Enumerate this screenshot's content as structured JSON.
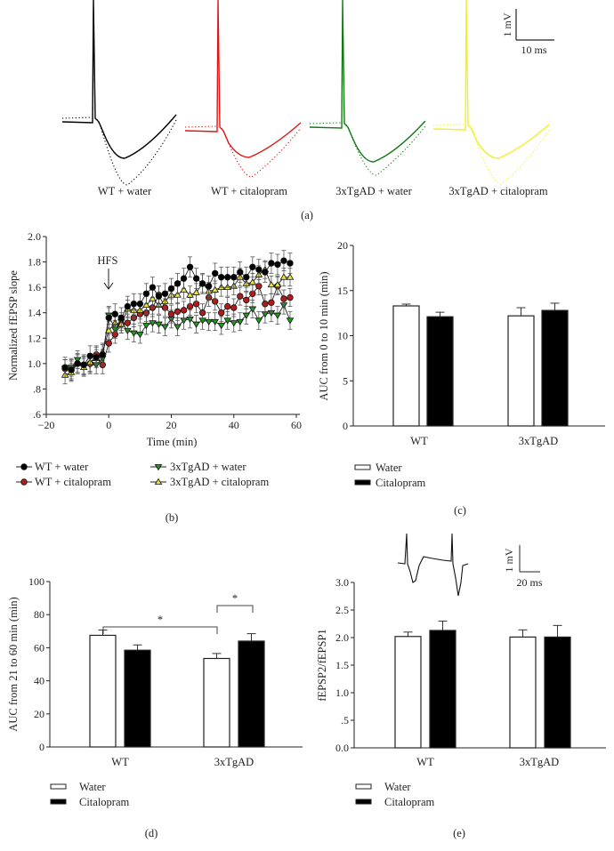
{
  "panel_a": {
    "traces": [
      {
        "label": "WT + water",
        "color": "#000000"
      },
      {
        "label": "WT + citalopram",
        "color": "#e01515"
      },
      {
        "label": "3xTgAD + water",
        "color": "#127a12"
      },
      {
        "label": "3xTgAD + citalopram",
        "color": "#f2f020"
      }
    ],
    "scale_v": "1 mV",
    "scale_h": "10 ms",
    "caption": "(a)"
  },
  "chart_data": [
    {
      "id": "b",
      "type": "line",
      "caption": "(b)",
      "xlabel": "Time (min)",
      "ylabel": "Normalized fEPSP slope",
      "xlim": [
        -20,
        60
      ],
      "ylim": [
        0.6,
        2.0
      ],
      "xticks": [
        "-20",
        "0",
        "20",
        "40",
        "60"
      ],
      "xtick_values": [
        -20,
        0,
        20,
        40,
        60
      ],
      "yticks": [
        ".6",
        ".8",
        "1.0",
        "1.2",
        "1.4",
        "1.6",
        "1.8",
        "2.0"
      ],
      "ytick_values": [
        0.6,
        0.8,
        1.0,
        1.2,
        1.4,
        1.6,
        1.8,
        2.0
      ],
      "annotation": {
        "text": "HFS",
        "x": 0
      },
      "x": [
        -14,
        -12,
        -10,
        -8,
        -6,
        -4,
        -2,
        0,
        2,
        4,
        6,
        8,
        10,
        12,
        14,
        16,
        18,
        20,
        22,
        24,
        26,
        28,
        30,
        32,
        34,
        36,
        38,
        40,
        42,
        44,
        46,
        48,
        50,
        52,
        54,
        56,
        58
      ],
      "series": [
        {
          "name": "WT + water",
          "color": "#000000",
          "marker": "circle",
          "sem": 0.08,
          "values": [
            0.97,
            0.95,
            1.0,
            0.99,
            1.06,
            1.05,
            1.07,
            1.36,
            1.39,
            1.36,
            1.45,
            1.47,
            1.47,
            1.55,
            1.6,
            1.53,
            1.55,
            1.59,
            1.63,
            1.67,
            1.76,
            1.67,
            1.63,
            1.61,
            1.71,
            1.68,
            1.68,
            1.68,
            1.72,
            1.68,
            1.76,
            1.74,
            1.72,
            1.79,
            1.78,
            1.81,
            1.79
          ]
        },
        {
          "name": "WT + citalopram",
          "color": "#b01c1c",
          "marker": "circle",
          "sem": 0.07,
          "values": [
            0.96,
            0.95,
            1.0,
            0.99,
            1.0,
            1.07,
            0.99,
            1.16,
            1.23,
            1.31,
            1.32,
            1.36,
            1.39,
            1.4,
            1.44,
            1.54,
            1.44,
            1.39,
            1.41,
            1.42,
            1.45,
            1.47,
            1.4,
            1.52,
            1.49,
            1.4,
            1.45,
            1.44,
            1.53,
            1.5,
            1.55,
            1.61,
            1.47,
            1.48,
            1.61,
            1.51,
            1.52
          ]
        },
        {
          "name": "3xTgAD + water",
          "color": "#1e9a1e",
          "marker": "triangle-down",
          "sem": 0.07,
          "values": [
            0.96,
            0.97,
            1.03,
            0.98,
            0.99,
            0.99,
            1.04,
            1.38,
            1.27,
            1.33,
            1.26,
            1.24,
            1.23,
            1.3,
            1.32,
            1.31,
            1.29,
            1.35,
            1.29,
            1.34,
            1.35,
            1.31,
            1.34,
            1.33,
            1.33,
            1.3,
            1.34,
            1.32,
            1.33,
            1.38,
            1.43,
            1.34,
            1.39,
            1.4,
            1.38,
            1.46,
            1.34
          ]
        },
        {
          "name": "3xTgAD + citalopram",
          "color": "#e8e43a",
          "marker": "triangle-up",
          "sem": 0.07,
          "values": [
            0.91,
            0.93,
            1.0,
            0.97,
            1.01,
            1.04,
            1.09,
            1.26,
            1.32,
            1.31,
            1.43,
            1.42,
            1.42,
            1.46,
            1.51,
            1.46,
            1.49,
            1.54,
            1.54,
            1.58,
            1.54,
            1.56,
            1.63,
            1.57,
            1.58,
            1.6,
            1.6,
            1.61,
            1.68,
            1.63,
            1.64,
            1.7,
            1.74,
            1.62,
            1.62,
            1.68,
            1.68
          ]
        }
      ]
    },
    {
      "id": "c",
      "type": "bar",
      "caption": "(c)",
      "ylabel": "AUC from 0 to 10 min (min)",
      "ylim": [
        0,
        20
      ],
      "yticks": [
        "0",
        "5",
        "10",
        "15",
        "20"
      ],
      "ytick_values": [
        0,
        5,
        10,
        15,
        20
      ],
      "categories": [
        "WT",
        "3xTgAD"
      ],
      "series": [
        {
          "name": "Water",
          "color": "#ffffff",
          "values": [
            13.3,
            12.2
          ],
          "errors": [
            0.2,
            0.9
          ]
        },
        {
          "name": "Citalopram",
          "color": "#000000",
          "values": [
            12.1,
            12.8
          ],
          "errors": [
            0.5,
            0.8
          ]
        }
      ]
    },
    {
      "id": "d",
      "type": "bar",
      "caption": "(d)",
      "ylabel": "AUC from 21 to 60 min (min)",
      "ylim": [
        0,
        100
      ],
      "yticks": [
        "0",
        "20",
        "40",
        "60",
        "80",
        "100"
      ],
      "ytick_values": [
        0,
        20,
        40,
        60,
        80,
        100
      ],
      "categories": [
        "WT",
        "3xTgAD"
      ],
      "series": [
        {
          "name": "Water",
          "color": "#ffffff",
          "values": [
            67.5,
            53.5
          ],
          "errors": [
            3.2,
            3.0
          ]
        },
        {
          "name": "Citalopram",
          "color": "#000000",
          "values": [
            58.5,
            64.0
          ],
          "errors": [
            3.2,
            4.5
          ]
        }
      ],
      "significance": [
        {
          "label": "*",
          "from": "WT Water",
          "to": "3xTgAD Water"
        },
        {
          "label": "*",
          "from": "3xTgAD Water",
          "to": "3xTgAD Citalopram"
        }
      ]
    },
    {
      "id": "e",
      "type": "bar",
      "caption": "(e)",
      "ylabel": "fEPSP2/fEPSP1",
      "ylim": [
        0,
        3.0
      ],
      "yticks": [
        "0.0",
        ".5",
        "1.0",
        "1.5",
        "2.0",
        "2.5",
        "3.0"
      ],
      "ytick_values": [
        0,
        0.5,
        1.0,
        1.5,
        2.0,
        2.5,
        3.0
      ],
      "categories": [
        "WT",
        "3xTgAD"
      ],
      "series": [
        {
          "name": "Water",
          "color": "#ffffff",
          "values": [
            2.02,
            2.01
          ],
          "errors": [
            0.08,
            0.13
          ]
        },
        {
          "name": "Citalopram",
          "color": "#000000",
          "values": [
            2.13,
            2.01
          ],
          "errors": [
            0.17,
            0.21
          ]
        }
      ],
      "inset": {
        "scale_v": "1 mV",
        "scale_h": "20 ms"
      }
    }
  ]
}
